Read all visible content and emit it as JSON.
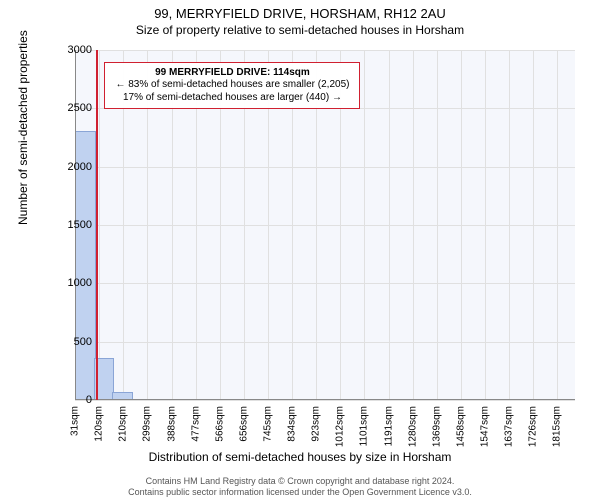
{
  "chart": {
    "type": "histogram",
    "title": "99, MERRYFIELD DRIVE, HORSHAM, RH12 2AU",
    "subtitle": "Size of property relative to semi-detached houses in Horsham",
    "title_fontsize": 13,
    "subtitle_fontsize": 12,
    "background_color": "#f5f7fc",
    "grid_color": "#e0e0e0",
    "axis_color": "#888888",
    "bar_color": "#c0d2f0",
    "bar_border_color": "#8aa5d6",
    "marker_color": "#d02030",
    "ylabel": "Number of semi-detached properties",
    "xlabel": "Distribution of semi-detached houses by size in Horsham",
    "label_fontsize": 12,
    "xtick_fontsize": 10,
    "ytick_fontsize": 11,
    "ylim": [
      0,
      3000
    ],
    "yticks": [
      0,
      500,
      1000,
      1500,
      2000,
      2500,
      3000
    ],
    "xlim_sqm": [
      31,
      1880
    ],
    "xticks_sqm": [
      31,
      120,
      210,
      299,
      388,
      477,
      566,
      656,
      745,
      834,
      923,
      1012,
      1101,
      1191,
      1280,
      1369,
      1458,
      1547,
      1637,
      1726,
      1815
    ],
    "xtick_labels": [
      "31sqm",
      "120sqm",
      "210sqm",
      "299sqm",
      "388sqm",
      "477sqm",
      "566sqm",
      "656sqm",
      "745sqm",
      "834sqm",
      "923sqm",
      "1012sqm",
      "1101sqm",
      "1191sqm",
      "1280sqm",
      "1369sqm",
      "1458sqm",
      "1547sqm",
      "1637sqm",
      "1726sqm",
      "1815sqm"
    ],
    "marker_sqm": 114,
    "bars": [
      {
        "x0_sqm": 31,
        "x1_sqm": 100,
        "count": 2300
      },
      {
        "x0_sqm": 100,
        "x1_sqm": 169,
        "count": 350
      },
      {
        "x0_sqm": 169,
        "x1_sqm": 238,
        "count": 60
      }
    ],
    "info_box": {
      "line1": "99 MERRYFIELD DRIVE: 114sqm",
      "line2": "← 83% of semi-detached houses are smaller (2,205)",
      "line3": "17% of semi-detached houses are larger (440) →",
      "border_color": "#d02030",
      "left_sqm": 140,
      "top_value": 2900
    }
  },
  "footer": {
    "line1": "Contains HM Land Registry data © Crown copyright and database right 2024.",
    "line2": "Contains public sector information licensed under the Open Government Licence v3.0."
  }
}
